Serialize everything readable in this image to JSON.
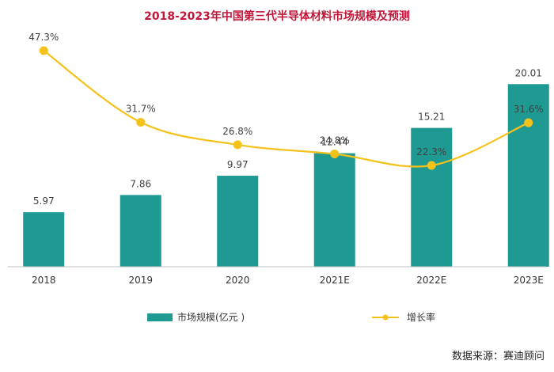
{
  "chart_data": {
    "type": "bar",
    "title": "2018-2023年中国第三代半导体材料市场规模及预测",
    "categories": [
      "2018",
      "2019",
      "2020",
      "2021E",
      "2022E",
      "2023E"
    ],
    "series": [
      {
        "name": "市场规模(亿元 )",
        "type": "bar",
        "values": [
          5.97,
          7.86,
          9.97,
          12.44,
          15.21,
          20.01
        ],
        "labels": [
          "5.97",
          "7.86",
          "9.97",
          "12.44",
          "15.21",
          "20.01"
        ],
        "color": "#1f9a93"
      },
      {
        "name": "增长率",
        "type": "line",
        "values": [
          47.3,
          31.7,
          26.8,
          24.8,
          22.3,
          31.6
        ],
        "labels": [
          "47.3%",
          "31.7%",
          "26.8%",
          "24.8%",
          "22.3%",
          "31.6%"
        ],
        "color": "#f5c21b"
      }
    ],
    "legend_position": "bottom",
    "grid": false
  },
  "source": "数据来源：赛迪顾问",
  "colors": {
    "title": "#c0183a",
    "axis": "#bfbfbf",
    "label": "#404040"
  }
}
